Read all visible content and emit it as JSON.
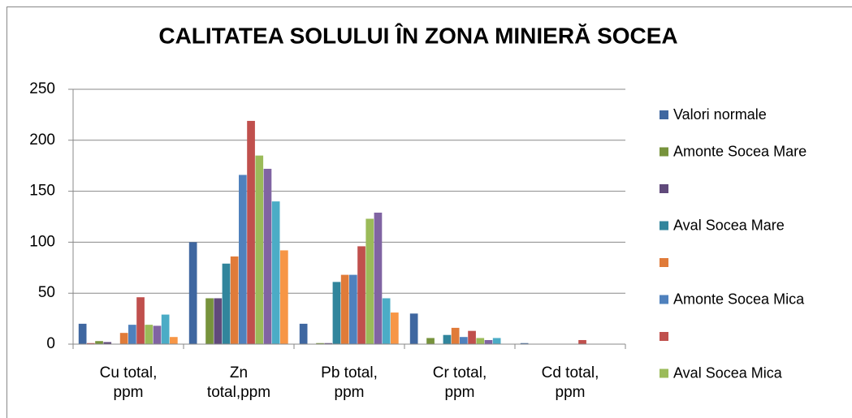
{
  "chart_data": {
    "type": "bar",
    "title": "CALITATEA SOLULUI ÎN ZONA MINIERĂ SOCEA",
    "categories": [
      "Cu total,\nppm",
      "Zn\ntotal,ppm",
      "Pb total,\nppm",
      "Cr total,\nppm",
      "Cd total,\nppm"
    ],
    "series": [
      {
        "name": "Valori normale",
        "color": "#3f67a0",
        "values": [
          20,
          100,
          20,
          30,
          1
        ]
      },
      {
        "color": "#c0504d",
        "values": [
          1,
          0,
          0,
          0,
          0
        ]
      },
      {
        "name": "Amonte Socea Mare",
        "color": "#77933c",
        "values": [
          3,
          45,
          1,
          6,
          0
        ]
      },
      {
        "name": null,
        "color": "#604a7b",
        "values": [
          2,
          45,
          1,
          0,
          0
        ]
      },
      {
        "name": "Aval  Socea Mare",
        "color": "#31859c",
        "values": [
          0,
          79,
          61,
          9,
          0
        ]
      },
      {
        "name": null,
        "color": "#e07b39",
        "values": [
          11,
          86,
          68,
          16,
          0
        ]
      },
      {
        "name": "Amonte  Socea Mica",
        "color": "#4f81bd",
        "values": [
          19,
          166,
          68,
          7,
          0
        ]
      },
      {
        "name": null,
        "color": "#c0504d",
        "values": [
          46,
          219,
          96,
          13,
          4
        ]
      },
      {
        "name": "Aval   Socea Mica",
        "color": "#9bbb59",
        "values": [
          19,
          185,
          123,
          6,
          0
        ]
      },
      {
        "color": "#8064a2",
        "values": [
          18,
          172,
          129,
          4,
          0
        ]
      },
      {
        "color": "#4bacc6",
        "values": [
          29,
          140,
          45,
          6,
          0
        ]
      },
      {
        "color": "#f79646",
        "values": [
          7,
          92,
          31,
          0,
          0
        ]
      }
    ],
    "ylim": [
      0,
      250
    ],
    "yticks": [
      0,
      50,
      100,
      150,
      200,
      250
    ],
    "grid": true
  }
}
